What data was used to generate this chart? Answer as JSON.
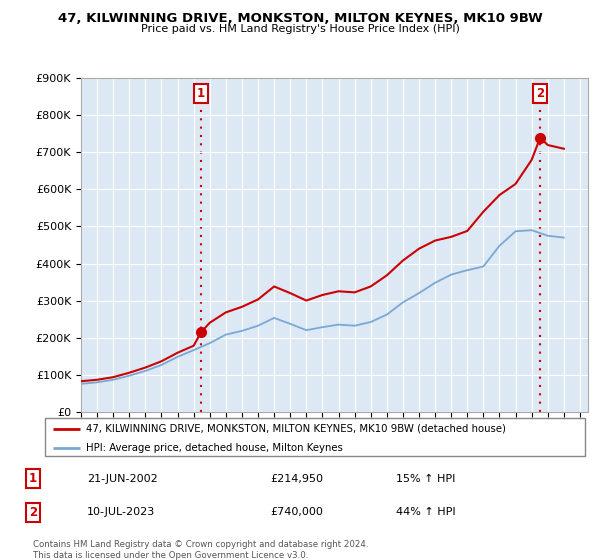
{
  "title": "47, KILWINNING DRIVE, MONKSTON, MILTON KEYNES, MK10 9BW",
  "subtitle": "Price paid vs. HM Land Registry's House Price Index (HPI)",
  "legend_line1": "47, KILWINNING DRIVE, MONKSTON, MILTON KEYNES, MK10 9BW (detached house)",
  "legend_line2": "HPI: Average price, detached house, Milton Keynes",
  "transaction1_date": "21-JUN-2002",
  "transaction1_price": "£214,950",
  "transaction1_hpi": "15% ↑ HPI",
  "transaction2_date": "10-JUL-2023",
  "transaction2_price": "£740,000",
  "transaction2_hpi": "44% ↑ HPI",
  "footer": "Contains HM Land Registry data © Crown copyright and database right 2024.\nThis data is licensed under the Open Government Licence v3.0.",
  "house_color": "#cc0000",
  "hpi_color": "#7aa8d2",
  "vline_color": "#cc0000",
  "ylim": [
    0,
    900000
  ],
  "xlim_start": 1995.0,
  "xlim_end": 2026.5,
  "transaction1_x": 2002.47,
  "transaction1_y": 214950,
  "transaction2_x": 2023.53,
  "transaction2_y": 740000,
  "hpi_x": [
    1995,
    1996,
    1997,
    1998,
    1999,
    2000,
    2001,
    2002,
    2003,
    2004,
    2005,
    2006,
    2007,
    2008,
    2009,
    2010,
    2011,
    2012,
    2013,
    2014,
    2015,
    2016,
    2017,
    2018,
    2019,
    2020,
    2021,
    2022,
    2023,
    2024,
    2025
  ],
  "hpi_y": [
    75000,
    79000,
    86000,
    97000,
    110000,
    126000,
    148000,
    166000,
    185000,
    208000,
    218000,
    232000,
    253000,
    237000,
    220000,
    228000,
    235000,
    232000,
    242000,
    262000,
    295000,
    320000,
    348000,
    370000,
    382000,
    392000,
    448000,
    487000,
    490000,
    475000,
    470000
  ],
  "house_x": [
    1995.0,
    1996.0,
    1997.0,
    1998.0,
    1999.0,
    2000.0,
    2001.0,
    2002.0,
    2002.47,
    2003.0,
    2004.0,
    2005.0,
    2006.0,
    2007.0,
    2008.0,
    2009.0,
    2010.0,
    2011.0,
    2012.0,
    2013.0,
    2014.0,
    2015.0,
    2016.0,
    2017.0,
    2018.0,
    2019.0,
    2020.0,
    2021.0,
    2022.0,
    2023.0,
    2023.53,
    2024.0,
    2025.0
  ],
  "house_y": [
    82000,
    86000,
    93000,
    105000,
    119000,
    136000,
    159000,
    178000,
    214950,
    240000,
    268000,
    283000,
    303000,
    338000,
    320000,
    300000,
    315000,
    325000,
    322000,
    338000,
    368000,
    408000,
    440000,
    462000,
    472000,
    488000,
    540000,
    585000,
    615000,
    680000,
    740000,
    720000,
    710000
  ]
}
